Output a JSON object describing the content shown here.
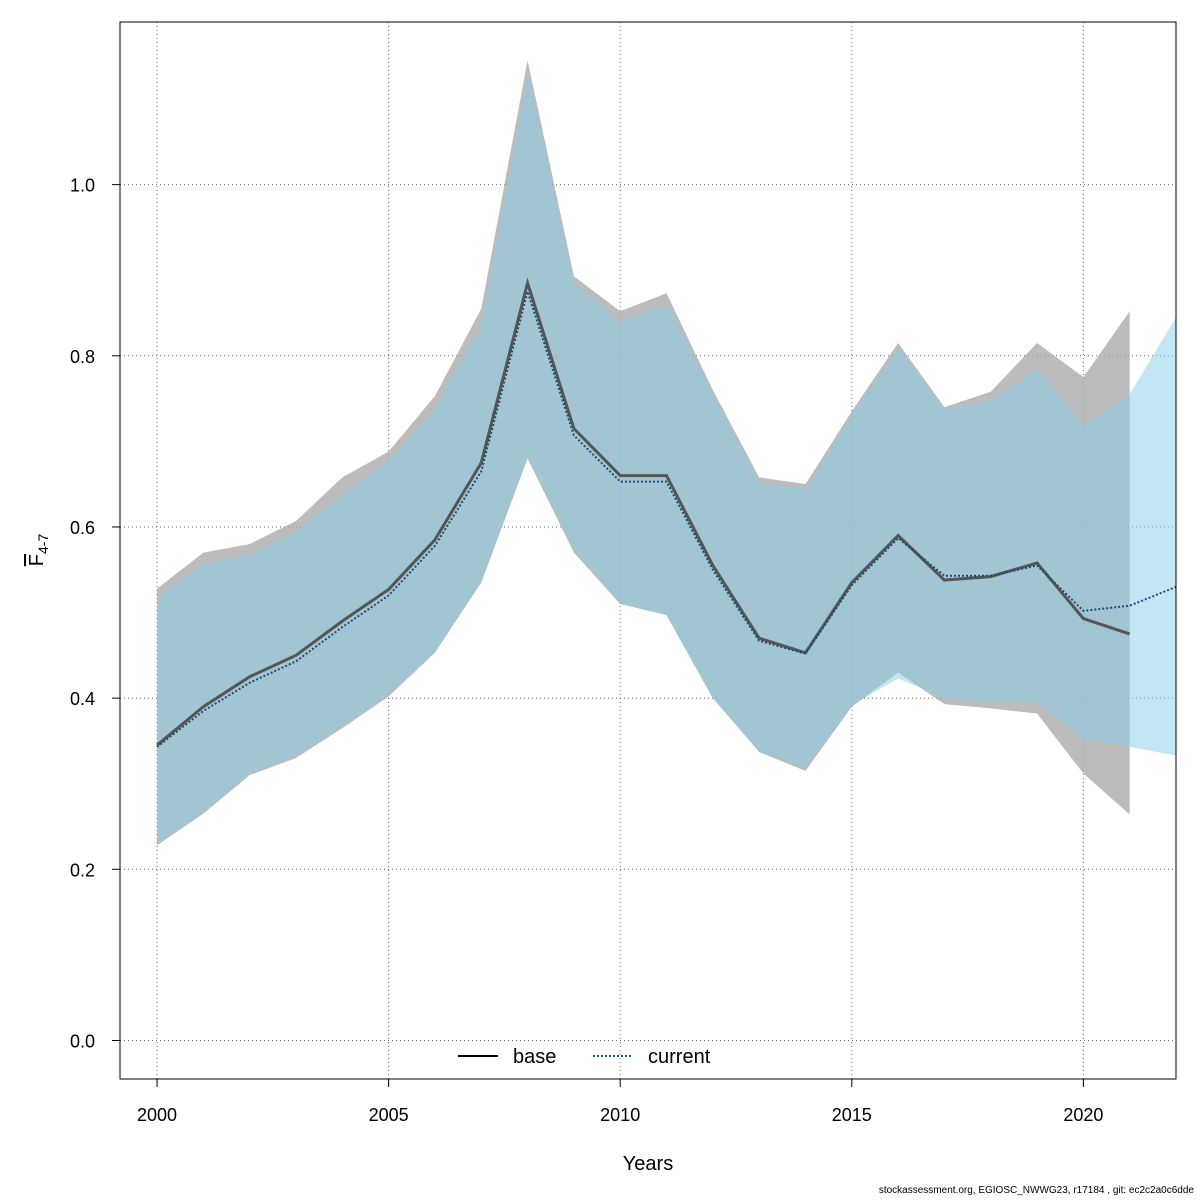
{
  "chart_data": {
    "type": "line",
    "xlabel": "Years",
    "ylabel": {
      "main": "F",
      "subscript": "4-7"
    },
    "xlim": [
      1999.2,
      2022
    ],
    "ylim": [
      -0.045,
      1.19
    ],
    "xticks": [
      2000,
      2005,
      2010,
      2015,
      2020
    ],
    "yticks": [
      0.0,
      0.2,
      0.4,
      0.6,
      0.8,
      1.0
    ],
    "ytick_labels": [
      "0.0",
      "0.2",
      "0.4",
      "0.6",
      "0.8",
      "1.0"
    ],
    "grid": true,
    "legend_position": "bottom-center",
    "colors": {
      "base_line": "#000000",
      "base_band": "#a6a6a6",
      "current_line": "#1b4f72",
      "current_band": "#87ceeb"
    },
    "series": [
      {
        "name": "base",
        "style": "solid",
        "x": [
          2000,
          2001,
          2002,
          2003,
          2004,
          2005,
          2006,
          2007,
          2008,
          2009,
          2010,
          2011,
          2012,
          2013,
          2014,
          2015,
          2016,
          2017,
          2018,
          2019,
          2020,
          2021
        ],
        "values": [
          0.345,
          0.39,
          0.425,
          0.45,
          0.49,
          0.527,
          0.585,
          0.675,
          0.885,
          0.715,
          0.66,
          0.66,
          0.555,
          0.47,
          0.453,
          0.535,
          0.59,
          0.538,
          0.542,
          0.558,
          0.493,
          0.475
        ],
        "lower": [
          0.228,
          0.265,
          0.31,
          0.33,
          0.365,
          0.402,
          0.453,
          0.535,
          0.68,
          0.57,
          0.51,
          0.497,
          0.4,
          0.337,
          0.315,
          0.39,
          0.43,
          0.393,
          0.388,
          0.382,
          0.312,
          0.264
        ],
        "upper": [
          0.528,
          0.57,
          0.58,
          0.607,
          0.658,
          0.688,
          0.753,
          0.855,
          1.145,
          0.893,
          0.852,
          0.873,
          0.76,
          0.658,
          0.65,
          0.735,
          0.815,
          0.74,
          0.758,
          0.815,
          0.775,
          0.852
        ]
      },
      {
        "name": "current",
        "style": "dotted",
        "x": [
          2000,
          2001,
          2002,
          2003,
          2004,
          2005,
          2006,
          2007,
          2008,
          2009,
          2010,
          2011,
          2012,
          2013,
          2014,
          2015,
          2016,
          2017,
          2018,
          2019,
          2020,
          2021,
          2022
        ],
        "values": [
          0.343,
          0.385,
          0.418,
          0.443,
          0.483,
          0.52,
          0.578,
          0.665,
          0.875,
          0.707,
          0.653,
          0.653,
          0.55,
          0.467,
          0.452,
          0.532,
          0.587,
          0.543,
          0.543,
          0.555,
          0.502,
          0.508,
          0.53
        ],
        "lower": [
          0.23,
          0.268,
          0.312,
          0.333,
          0.368,
          0.405,
          0.455,
          0.538,
          0.682,
          0.572,
          0.51,
          0.497,
          0.4,
          0.338,
          0.318,
          0.392,
          0.423,
          0.4,
          0.395,
          0.395,
          0.352,
          0.343,
          0.333
        ],
        "upper": [
          0.518,
          0.557,
          0.567,
          0.595,
          0.638,
          0.678,
          0.737,
          0.838,
          1.13,
          0.885,
          0.84,
          0.86,
          0.755,
          0.652,
          0.645,
          0.732,
          0.81,
          0.738,
          0.748,
          0.785,
          0.718,
          0.755,
          0.845
        ]
      }
    ]
  },
  "footer": "stockassessment.org, EGIOSC_NWWG23, r17184 , git: ec2c2a0c6dde"
}
